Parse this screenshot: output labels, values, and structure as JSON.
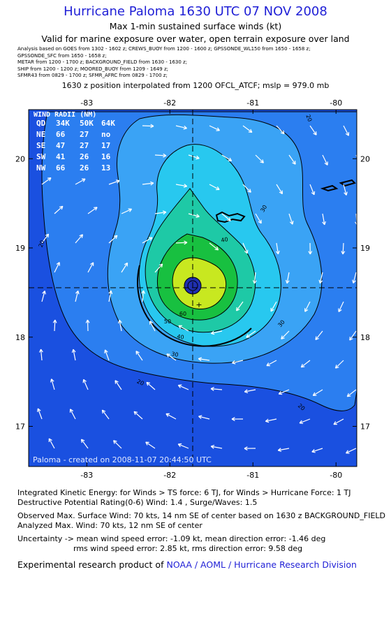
{
  "header": {
    "title": "Hurricane Paloma 1630 UTC 07 NOV 2008",
    "subtitle": "Max 1-min sustained surface winds (kt)",
    "validity": "Valid for marine exposure over water, open terrain exposure over land",
    "sources": [
      "Analysis based on  GOES from 1302 - 1602 z;  CREWS_BUOY from 1200 - 1600 z;  GPSSONDE_WL150 from 1650 - 1658 z;",
      "GPSSONDE_SFC from 1650 - 1658 z;",
      "METAR from 1200 - 1700 z;  BACKGROUND_FIELD from 1630 - 1630 z;",
      "SHIP from 1200 - 1200 z;  MOORED_BUOY from 1209 - 1649 z;",
      "SFMR43 from 0829 - 1700 z;  SFMR_AFRC from 0829 - 1700 z;"
    ],
    "interpolation": "1630 z position interpolated from 1200 OFCL_ATCF; mslp = 979.0 mb"
  },
  "map": {
    "lon_ticks": [
      "-83",
      "-82",
      "-81",
      "-80"
    ],
    "lat_ticks": [
      "20",
      "19",
      "18",
      "17"
    ],
    "lon_range": [
      -83.7,
      -79.75
    ],
    "lat_range": [
      16.55,
      20.55
    ],
    "center": {
      "lon": -81.7,
      "lat": 18.55
    },
    "credit": "Paloma - created on 2008-11-07 20:44:50 UTC",
    "contour_labels": [
      "20",
      "20",
      "20",
      "20",
      "30",
      "30",
      "30",
      "40",
      "40",
      "50",
      "60"
    ],
    "colors": {
      "ocean": "#1a50e0",
      "c20": "#2b7ef0",
      "c30": "#3aa3f5",
      "c40": "#28c8ef",
      "c50": "#1ec9a6",
      "c60": "#18c040",
      "c70": "#c8e820",
      "eye": "#1f2fb0",
      "axis_text": "#000000",
      "credit_text": "#dfe8ff"
    }
  },
  "wind_radii": {
    "title": "WIND RADII (NM)",
    "header": [
      "QD",
      "34K",
      "50K",
      "64K"
    ],
    "rows": [
      [
        "NE",
        "66",
        "27",
        "no"
      ],
      [
        "SE",
        "47",
        "27",
        "17"
      ],
      [
        "SW",
        "41",
        "26",
        "16"
      ],
      [
        "NW",
        "66",
        "26",
        "13"
      ]
    ]
  },
  "footer": {
    "ike": "Integrated Kinetic Energy:  for Winds > TS force: 6 TJ,  for Winds > Hurricane Force: 1 TJ",
    "dpr": "Destructive Potential Rating(0-6)   Wind: 1.4 , Surge/Waves: 1.5",
    "observed": "Observed Max. Surface Wind: 70 kts, 14 nm SE of center based on 1630 z BACKGROUND_FIELD",
    "analyzed": "Analyzed Max. Wind: 70 kts, 12 nm SE of center",
    "uncertainty1": "Uncertainty -> mean wind speed error:  -1.09 kt,   mean direction error:  -1.46 deg",
    "uncertainty2": "rms wind speed error: 2.85 kt,   rms direction error: 9.58 deg",
    "product_prefix": "Experimental research product of",
    "product_org": "NOAA / AOML / Hurricane Research Division"
  }
}
